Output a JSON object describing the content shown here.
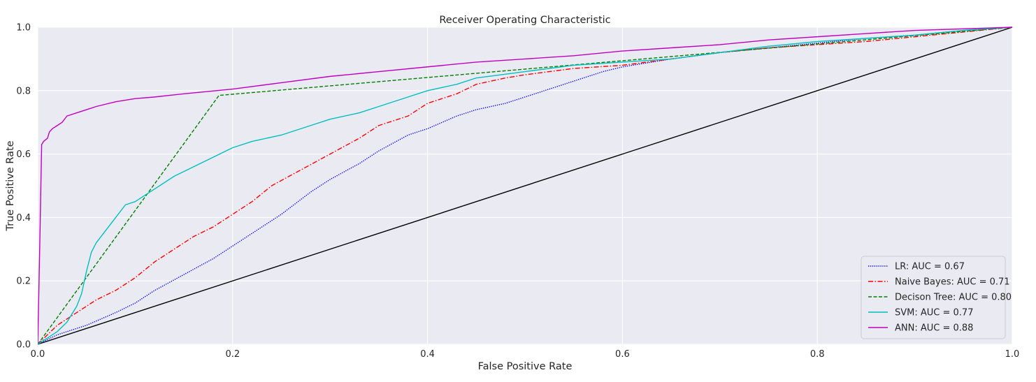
{
  "chart_data": {
    "type": "line",
    "title": "Receiver Operating Characteristic",
    "xlabel": "False Positive Rate",
    "ylabel": "True Positive Rate",
    "xlim": [
      0.0,
      1.0
    ],
    "ylim": [
      0.0,
      1.0
    ],
    "x_ticks": [
      "0.0",
      "0.2",
      "0.4",
      "0.6",
      "0.8",
      "1.0"
    ],
    "y_ticks": [
      "0.0",
      "0.2",
      "0.4",
      "0.6",
      "0.8",
      "1.0"
    ],
    "grid": true,
    "legend_position": "bottom-right",
    "series": [
      {
        "name": "LR: AUC = 0.67",
        "color": "#0000ff",
        "dash": "dotted",
        "x": [
          0,
          0.02,
          0.05,
          0.08,
          0.1,
          0.12,
          0.15,
          0.18,
          0.2,
          0.22,
          0.25,
          0.28,
          0.3,
          0.33,
          0.35,
          0.38,
          0.4,
          0.43,
          0.45,
          0.48,
          0.5,
          0.53,
          0.55,
          0.58,
          0.6,
          0.65,
          0.7,
          0.75,
          0.8,
          0.85,
          0.9,
          0.95,
          1.0
        ],
        "y": [
          0,
          0.03,
          0.06,
          0.1,
          0.13,
          0.17,
          0.22,
          0.27,
          0.31,
          0.35,
          0.41,
          0.48,
          0.52,
          0.57,
          0.61,
          0.66,
          0.68,
          0.72,
          0.74,
          0.76,
          0.78,
          0.81,
          0.83,
          0.86,
          0.875,
          0.9,
          0.92,
          0.935,
          0.95,
          0.965,
          0.975,
          0.99,
          1.0
        ]
      },
      {
        "name": "Naive Bayes: AUC = 0.71",
        "color": "#ff0000",
        "dash": "dashdot",
        "x": [
          0,
          0.02,
          0.04,
          0.06,
          0.08,
          0.1,
          0.12,
          0.14,
          0.16,
          0.18,
          0.2,
          0.22,
          0.24,
          0.27,
          0.3,
          0.33,
          0.35,
          0.38,
          0.4,
          0.43,
          0.45,
          0.48,
          0.5,
          0.55,
          0.6,
          0.65,
          0.7,
          0.75,
          0.8,
          0.85,
          0.9,
          0.95,
          1.0
        ],
        "y": [
          0,
          0.06,
          0.1,
          0.14,
          0.17,
          0.21,
          0.26,
          0.3,
          0.34,
          0.37,
          0.41,
          0.45,
          0.5,
          0.55,
          0.6,
          0.65,
          0.69,
          0.72,
          0.76,
          0.79,
          0.82,
          0.84,
          0.85,
          0.87,
          0.88,
          0.9,
          0.92,
          0.935,
          0.945,
          0.955,
          0.97,
          0.985,
          1.0
        ]
      },
      {
        "name": "Decison Tree: AUC = 0.80",
        "color": "#008000",
        "dash": "dashed",
        "x": [
          0,
          0.186,
          1.0
        ],
        "y": [
          0,
          0.785,
          1.0
        ]
      },
      {
        "name": "SVM: AUC = 0.77",
        "color": "#00bfbf",
        "dash": "solid",
        "x": [
          0,
          0.01,
          0.02,
          0.03,
          0.04,
          0.045,
          0.05,
          0.055,
          0.06,
          0.07,
          0.08,
          0.09,
          0.1,
          0.12,
          0.14,
          0.16,
          0.18,
          0.2,
          0.22,
          0.25,
          0.28,
          0.3,
          0.33,
          0.35,
          0.38,
          0.4,
          0.43,
          0.45,
          0.5,
          0.55,
          0.6,
          0.65,
          0.7,
          0.75,
          0.8,
          0.85,
          0.9,
          0.95,
          1.0
        ],
        "y": [
          0,
          0.02,
          0.04,
          0.07,
          0.12,
          0.16,
          0.23,
          0.29,
          0.32,
          0.36,
          0.4,
          0.44,
          0.45,
          0.49,
          0.53,
          0.56,
          0.59,
          0.62,
          0.64,
          0.66,
          0.69,
          0.71,
          0.73,
          0.75,
          0.78,
          0.8,
          0.82,
          0.84,
          0.86,
          0.88,
          0.89,
          0.9,
          0.92,
          0.94,
          0.955,
          0.965,
          0.975,
          0.99,
          1.0
        ]
      },
      {
        "name": "ANN: AUC = 0.88",
        "color": "#bf00bf",
        "dash": "solid",
        "x": [
          0,
          0.002,
          0.004,
          0.006,
          0.01,
          0.012,
          0.015,
          0.02,
          0.025,
          0.03,
          0.04,
          0.05,
          0.06,
          0.08,
          0.1,
          0.12,
          0.15,
          0.2,
          0.25,
          0.3,
          0.35,
          0.4,
          0.45,
          0.5,
          0.55,
          0.6,
          0.65,
          0.7,
          0.75,
          0.8,
          0.85,
          0.9,
          0.95,
          1.0
        ],
        "y": [
          0,
          0.3,
          0.63,
          0.64,
          0.65,
          0.67,
          0.68,
          0.69,
          0.7,
          0.72,
          0.73,
          0.74,
          0.75,
          0.765,
          0.775,
          0.78,
          0.79,
          0.805,
          0.825,
          0.845,
          0.86,
          0.875,
          0.89,
          0.9,
          0.91,
          0.925,
          0.935,
          0.945,
          0.96,
          0.97,
          0.98,
          0.99,
          0.995,
          1.0
        ]
      },
      {
        "name": "",
        "color": "#000000",
        "dash": "solid",
        "x": [
          0,
          1
        ],
        "y": [
          0,
          1
        ]
      }
    ]
  }
}
